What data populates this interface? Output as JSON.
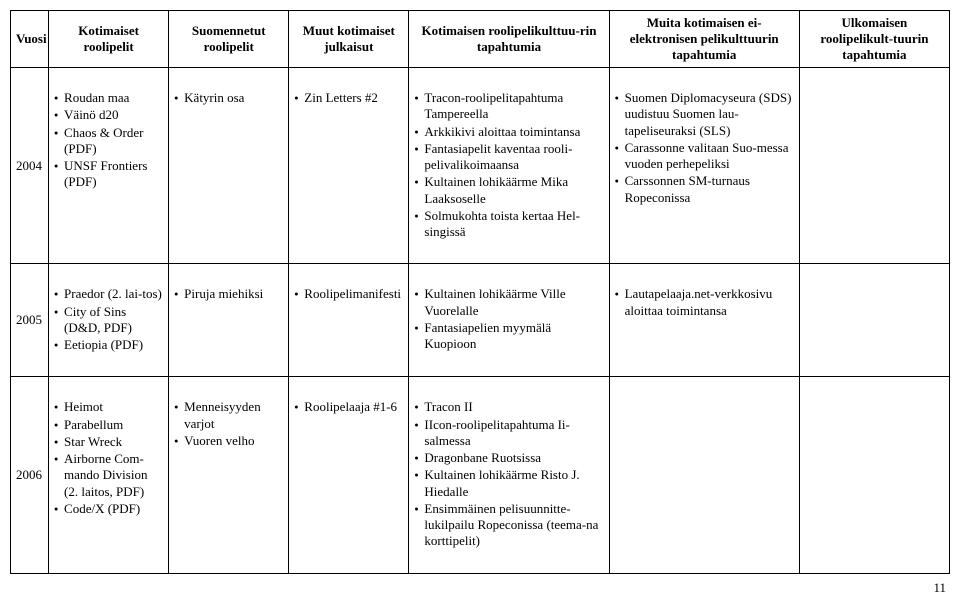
{
  "headers": {
    "year": "Vuosi",
    "col_a": "Kotimaiset roolipelit",
    "col_b": "Suomennetut roolipelit",
    "col_c": "Muut kotimaiset julkaisut",
    "col_d": "Kotimaisen roolipelikulttuu-rin tapahtumia",
    "col_e": "Muita kotimaisen ei-elektronisen pelikulttuurin tapahtumia",
    "col_f": "Ulkomaisen roolipelikult-tuurin tapahtumia"
  },
  "rows": [
    {
      "year": "2004",
      "a": [
        "Roudan maa",
        "Väinö d20",
        "Chaos & Order (PDF)",
        "UNSF Frontiers (PDF)"
      ],
      "b": [
        "Kätyrin osa"
      ],
      "c": [
        "Zin Letters #2"
      ],
      "d": [
        "Tracon-roolipelitapahtuma Tampereella",
        "Arkkikivi aloittaa toimintansa",
        "Fantasiapelit kaventaa rooli-pelivalikoimaansa",
        "Kultainen lohikäärme Mika Laaksoselle",
        "Solmukohta toista kertaa Hel-singissä"
      ],
      "e": [
        "Suomen Diplomacyseura (SDS) uudistuu Suomen lau-tapeliseuraksi (SLS)",
        "Carassonne valitaan Suo-messa vuoden perhepeliksi",
        "Carssonnen SM-turnaus Ropeconissa"
      ],
      "f": []
    },
    {
      "year": "2005",
      "a": [
        "Praedor (2. lai-tos)",
        "City of Sins (D&D, PDF)",
        "Eetiopia (PDF)"
      ],
      "b": [
        "Piruja miehiksi"
      ],
      "c": [
        "Roolipelimanifesti"
      ],
      "d": [
        "Kultainen lohikäärme Ville Vuorelalle",
        "Fantasiapelien myymälä Kuopioon"
      ],
      "e": [
        "Lautapelaaja.net-verkkosivu aloittaa toimintansa"
      ],
      "f": []
    },
    {
      "year": "2006",
      "a": [
        "Heimot",
        "Parabellum",
        "Star Wreck",
        "Airborne Com-mando Division (2. laitos, PDF)",
        "Code/X (PDF)"
      ],
      "b": [
        "Menneisyyden varjot",
        "Vuoren velho"
      ],
      "c": [
        "Roolipelaaja #1-6"
      ],
      "d": [
        "Tracon II",
        "IIcon-roolipelitapahtuma Ii-salmessa",
        "Dragonbane Ruotsissa",
        "Kultainen lohikäärme Risto J. Hiedalle",
        "Ensimmäinen pelisuunnitte-lukilpailu Ropeconissa (teema-na korttipelit)"
      ],
      "e": [],
      "f": []
    }
  ],
  "page_number": "11"
}
